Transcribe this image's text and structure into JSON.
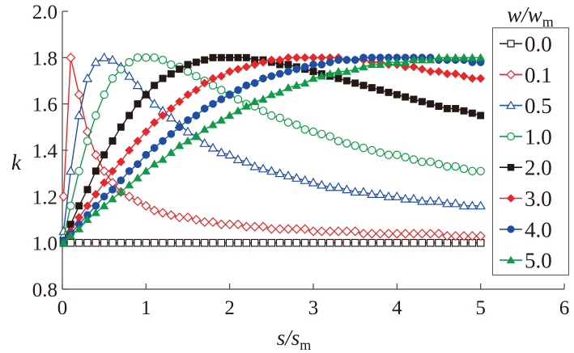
{
  "chart_data": {
    "type": "line",
    "title": "",
    "xlabel": {
      "main": "s/s",
      "sub": "m"
    },
    "ylabel": "k",
    "xlim": [
      0,
      6
    ],
    "ylim": [
      0.8,
      2.0
    ],
    "xticks": [
      "0",
      "1",
      "2",
      "3",
      "4",
      "5",
      "6"
    ],
    "yticks": [
      "0.8",
      "1.0",
      "1.2",
      "1.4",
      "1.6",
      "1.8",
      "2.0"
    ],
    "grid": false,
    "legend": {
      "title_main": "w/w",
      "title_sub": "m",
      "placement": "right"
    },
    "x": [
      0.015,
      0.1,
      0.2,
      0.3,
      0.4,
      0.5,
      0.6,
      0.7,
      0.8,
      0.9,
      1.0,
      1.1,
      1.2,
      1.3,
      1.4,
      1.5,
      1.6,
      1.7,
      1.8,
      1.9,
      2.0,
      2.1,
      2.2,
      2.3,
      2.4,
      2.5,
      2.6,
      2.7,
      2.8,
      2.9,
      3.0,
      3.1,
      3.2,
      3.3,
      3.4,
      3.5,
      3.6,
      3.7,
      3.8,
      3.9,
      4.0,
      4.1,
      4.2,
      4.3,
      4.4,
      4.5,
      4.6,
      4.7,
      4.8,
      4.9,
      5.0
    ],
    "series": [
      {
        "name": "0.0",
        "color": "#231815",
        "marker": "square-open",
        "values": [
          1.0,
          1.0,
          1.0,
          1.0,
          1.0,
          1.0,
          1.0,
          1.0,
          1.0,
          1.0,
          1.0,
          1.0,
          1.0,
          1.0,
          1.0,
          1.0,
          1.0,
          1.0,
          1.0,
          1.0,
          1.0,
          1.0,
          1.0,
          1.0,
          1.0,
          1.0,
          1.0,
          1.0,
          1.0,
          1.0,
          1.0,
          1.0,
          1.0,
          1.0,
          1.0,
          1.0,
          1.0,
          1.0,
          1.0,
          1.0,
          1.0,
          1.0,
          1.0,
          1.0,
          1.0,
          1.0,
          1.0,
          1.0,
          1.0,
          1.0,
          1.0
        ]
      },
      {
        "name": "0.1",
        "color": "#e8272a",
        "marker": "diamond-open",
        "values": [
          1.2,
          1.8,
          1.64,
          1.48,
          1.38,
          1.31,
          1.26,
          1.22,
          1.2,
          1.18,
          1.16,
          1.14,
          1.13,
          1.12,
          1.11,
          1.11,
          1.1,
          1.09,
          1.09,
          1.08,
          1.08,
          1.08,
          1.07,
          1.07,
          1.07,
          1.06,
          1.06,
          1.06,
          1.06,
          1.06,
          1.05,
          1.05,
          1.05,
          1.05,
          1.05,
          1.05,
          1.04,
          1.04,
          1.04,
          1.04,
          1.04,
          1.04,
          1.04,
          1.04,
          1.04,
          1.04,
          1.03,
          1.03,
          1.03,
          1.03,
          1.03
        ]
      },
      {
        "name": "0.5",
        "color": "#1f4ea3",
        "marker": "triangle-open",
        "values": [
          1.05,
          1.31,
          1.55,
          1.71,
          1.78,
          1.8,
          1.79,
          1.76,
          1.72,
          1.68,
          1.64,
          1.6,
          1.57,
          1.54,
          1.51,
          1.48,
          1.46,
          1.43,
          1.41,
          1.39,
          1.38,
          1.36,
          1.35,
          1.33,
          1.32,
          1.31,
          1.3,
          1.29,
          1.28,
          1.27,
          1.26,
          1.25,
          1.24,
          1.24,
          1.23,
          1.22,
          1.22,
          1.21,
          1.21,
          1.2,
          1.2,
          1.19,
          1.19,
          1.18,
          1.18,
          1.18,
          1.17,
          1.17,
          1.16,
          1.16,
          1.16
        ]
      },
      {
        "name": "1.0",
        "color": "#0f9b48",
        "marker": "circle-open",
        "values": [
          1.02,
          1.16,
          1.31,
          1.44,
          1.55,
          1.64,
          1.71,
          1.75,
          1.78,
          1.8,
          1.8,
          1.8,
          1.79,
          1.77,
          1.76,
          1.74,
          1.72,
          1.7,
          1.68,
          1.66,
          1.64,
          1.62,
          1.6,
          1.59,
          1.57,
          1.55,
          1.54,
          1.52,
          1.51,
          1.49,
          1.48,
          1.47,
          1.46,
          1.44,
          1.43,
          1.42,
          1.41,
          1.4,
          1.39,
          1.38,
          1.38,
          1.37,
          1.36,
          1.35,
          1.35,
          1.34,
          1.33,
          1.33,
          1.32,
          1.31,
          1.31
        ]
      },
      {
        "name": "2.0",
        "color": "#231815",
        "marker": "square-filled",
        "values": [
          1.01,
          1.08,
          1.16,
          1.23,
          1.31,
          1.38,
          1.44,
          1.5,
          1.55,
          1.6,
          1.64,
          1.68,
          1.71,
          1.73,
          1.75,
          1.77,
          1.78,
          1.79,
          1.8,
          1.8,
          1.8,
          1.8,
          1.8,
          1.79,
          1.79,
          1.78,
          1.77,
          1.77,
          1.76,
          1.75,
          1.74,
          1.73,
          1.72,
          1.71,
          1.7,
          1.69,
          1.68,
          1.67,
          1.66,
          1.65,
          1.64,
          1.63,
          1.62,
          1.61,
          1.6,
          1.59,
          1.58,
          1.58,
          1.57,
          1.56,
          1.55
        ]
      },
      {
        "name": "3.0",
        "color": "#e8272a",
        "marker": "diamond-filled",
        "values": [
          1.01,
          1.05,
          1.11,
          1.16,
          1.21,
          1.26,
          1.31,
          1.35,
          1.4,
          1.44,
          1.48,
          1.52,
          1.55,
          1.58,
          1.61,
          1.64,
          1.66,
          1.69,
          1.71,
          1.72,
          1.74,
          1.75,
          1.76,
          1.77,
          1.78,
          1.79,
          1.79,
          1.8,
          1.8,
          1.8,
          1.8,
          1.8,
          1.8,
          1.8,
          1.79,
          1.79,
          1.79,
          1.78,
          1.78,
          1.77,
          1.77,
          1.76,
          1.76,
          1.75,
          1.74,
          1.74,
          1.73,
          1.73,
          1.72,
          1.71,
          1.71
        ]
      },
      {
        "name": "4.0",
        "color": "#1f4ea3",
        "marker": "circle-filled",
        "values": [
          1.01,
          1.04,
          1.08,
          1.12,
          1.16,
          1.2,
          1.23,
          1.27,
          1.31,
          1.34,
          1.38,
          1.41,
          1.44,
          1.47,
          1.5,
          1.53,
          1.55,
          1.58,
          1.6,
          1.62,
          1.64,
          1.66,
          1.68,
          1.69,
          1.71,
          1.72,
          1.73,
          1.74,
          1.75,
          1.76,
          1.77,
          1.77,
          1.78,
          1.79,
          1.79,
          1.79,
          1.8,
          1.8,
          1.8,
          1.8,
          1.8,
          1.8,
          1.8,
          1.8,
          1.8,
          1.79,
          1.79,
          1.79,
          1.79,
          1.78,
          1.78
        ]
      },
      {
        "name": "5.0",
        "color": "#0f9b48",
        "marker": "triangle-filled",
        "values": [
          1.0,
          1.03,
          1.06,
          1.1,
          1.13,
          1.16,
          1.19,
          1.22,
          1.25,
          1.28,
          1.31,
          1.34,
          1.36,
          1.39,
          1.42,
          1.44,
          1.46,
          1.49,
          1.51,
          1.53,
          1.55,
          1.57,
          1.59,
          1.61,
          1.62,
          1.64,
          1.65,
          1.67,
          1.68,
          1.69,
          1.71,
          1.72,
          1.73,
          1.74,
          1.74,
          1.75,
          1.76,
          1.77,
          1.77,
          1.78,
          1.78,
          1.78,
          1.79,
          1.79,
          1.79,
          1.8,
          1.8,
          1.8,
          1.8,
          1.8,
          1.8
        ]
      }
    ]
  }
}
